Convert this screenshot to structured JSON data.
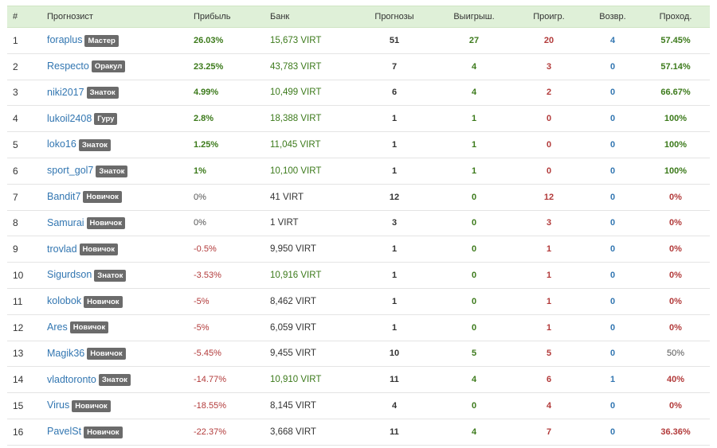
{
  "header": {
    "num": "#",
    "forecaster": "Прогнозист",
    "profit": "Прибыль",
    "bank": "Банк",
    "forecasts": "Прогнозы",
    "won": "Выигрыш.",
    "lost": "Проигр.",
    "returned": "Возвр.",
    "pass": "Проход."
  },
  "rows": [
    {
      "num": "1",
      "name": "foraplus",
      "badge": "Мастер",
      "profit": "26.03%",
      "profit_class": "pos",
      "bank": "15,673 VIRT",
      "bank_class": "green",
      "forecasts": "51",
      "won": "27",
      "lost": "20",
      "returned": "4",
      "pass": "57.45%",
      "pass_class": "green"
    },
    {
      "num": "2",
      "name": "Respecto",
      "badge": "Оракул",
      "profit": "23.25%",
      "profit_class": "pos",
      "bank": "43,783 VIRT",
      "bank_class": "green",
      "forecasts": "7",
      "won": "4",
      "lost": "3",
      "returned": "0",
      "pass": "57.14%",
      "pass_class": "green"
    },
    {
      "num": "3",
      "name": "niki2017",
      "badge": "Знаток",
      "profit": "4.99%",
      "profit_class": "pos",
      "bank": "10,499 VIRT",
      "bank_class": "green",
      "forecasts": "6",
      "won": "4",
      "lost": "2",
      "returned": "0",
      "pass": "66.67%",
      "pass_class": "green"
    },
    {
      "num": "4",
      "name": "lukoil2408",
      "badge": "Гуру",
      "profit": "2.8%",
      "profit_class": "pos",
      "bank": "18,388 VIRT",
      "bank_class": "green",
      "forecasts": "1",
      "won": "1",
      "lost": "0",
      "returned": "0",
      "pass": "100%",
      "pass_class": "green"
    },
    {
      "num": "5",
      "name": "loko16",
      "badge": "Знаток",
      "profit": "1.25%",
      "profit_class": "pos",
      "bank": "11,045 VIRT",
      "bank_class": "green",
      "forecasts": "1",
      "won": "1",
      "lost": "0",
      "returned": "0",
      "pass": "100%",
      "pass_class": "green"
    },
    {
      "num": "6",
      "name": "sport_gol7",
      "badge": "Знаток",
      "profit": "1%",
      "profit_class": "pos",
      "bank": "10,100 VIRT",
      "bank_class": "green",
      "forecasts": "1",
      "won": "1",
      "lost": "0",
      "returned": "0",
      "pass": "100%",
      "pass_class": "green"
    },
    {
      "num": "7",
      "name": "Bandit7",
      "badge": "Новичок",
      "profit": "0%",
      "profit_class": "zero",
      "bank": "41 VIRT",
      "bank_class": "dark",
      "forecasts": "12",
      "won": "0",
      "lost": "12",
      "returned": "0",
      "pass": "0%",
      "pass_class": "red"
    },
    {
      "num": "8",
      "name": "Samurai",
      "badge": "Новичок",
      "profit": "0%",
      "profit_class": "zero",
      "bank": "1 VIRT",
      "bank_class": "dark",
      "forecasts": "3",
      "won": "0",
      "lost": "3",
      "returned": "0",
      "pass": "0%",
      "pass_class": "red"
    },
    {
      "num": "9",
      "name": "trovlad",
      "badge": "Новичок",
      "profit": "-0.5%",
      "profit_class": "neg",
      "bank": "9,950 VIRT",
      "bank_class": "dark",
      "forecasts": "1",
      "won": "0",
      "lost": "1",
      "returned": "0",
      "pass": "0%",
      "pass_class": "red"
    },
    {
      "num": "10",
      "name": "Sigurdson",
      "badge": "Знаток",
      "profit": "-3.53%",
      "profit_class": "neg",
      "bank": "10,916 VIRT",
      "bank_class": "green",
      "forecasts": "1",
      "won": "0",
      "lost": "1",
      "returned": "0",
      "pass": "0%",
      "pass_class": "red"
    },
    {
      "num": "11",
      "name": "kolobok",
      "badge": "Новичок",
      "profit": "-5%",
      "profit_class": "neg",
      "bank": "8,462 VIRT",
      "bank_class": "dark",
      "forecasts": "1",
      "won": "0",
      "lost": "1",
      "returned": "0",
      "pass": "0%",
      "pass_class": "red"
    },
    {
      "num": "12",
      "name": "Ares",
      "badge": "Новичок",
      "profit": "-5%",
      "profit_class": "neg",
      "bank": "6,059 VIRT",
      "bank_class": "dark",
      "forecasts": "1",
      "won": "0",
      "lost": "1",
      "returned": "0",
      "pass": "0%",
      "pass_class": "red"
    },
    {
      "num": "13",
      "name": "Magik36",
      "badge": "Новичок",
      "profit": "-5.45%",
      "profit_class": "neg",
      "bank": "9,455 VIRT",
      "bank_class": "dark",
      "forecasts": "10",
      "won": "5",
      "lost": "5",
      "returned": "0",
      "pass": "50%",
      "pass_class": "grey"
    },
    {
      "num": "14",
      "name": "vladtoronto",
      "badge": "Знаток",
      "profit": "-14.77%",
      "profit_class": "neg",
      "bank": "10,910 VIRT",
      "bank_class": "green",
      "forecasts": "11",
      "won": "4",
      "lost": "6",
      "returned": "1",
      "pass": "40%",
      "pass_class": "red"
    },
    {
      "num": "15",
      "name": "Virus",
      "badge": "Новичок",
      "profit": "-18.55%",
      "profit_class": "neg",
      "bank": "8,145 VIRT",
      "bank_class": "dark",
      "forecasts": "4",
      "won": "0",
      "lost": "4",
      "returned": "0",
      "pass": "0%",
      "pass_class": "red"
    },
    {
      "num": "16",
      "name": "PavelSt",
      "badge": "Новичок",
      "profit": "-22.37%",
      "profit_class": "neg",
      "bank": "3,668 VIRT",
      "bank_class": "dark",
      "forecasts": "11",
      "won": "4",
      "lost": "7",
      "returned": "0",
      "pass": "36.36%",
      "pass_class": "red"
    }
  ]
}
